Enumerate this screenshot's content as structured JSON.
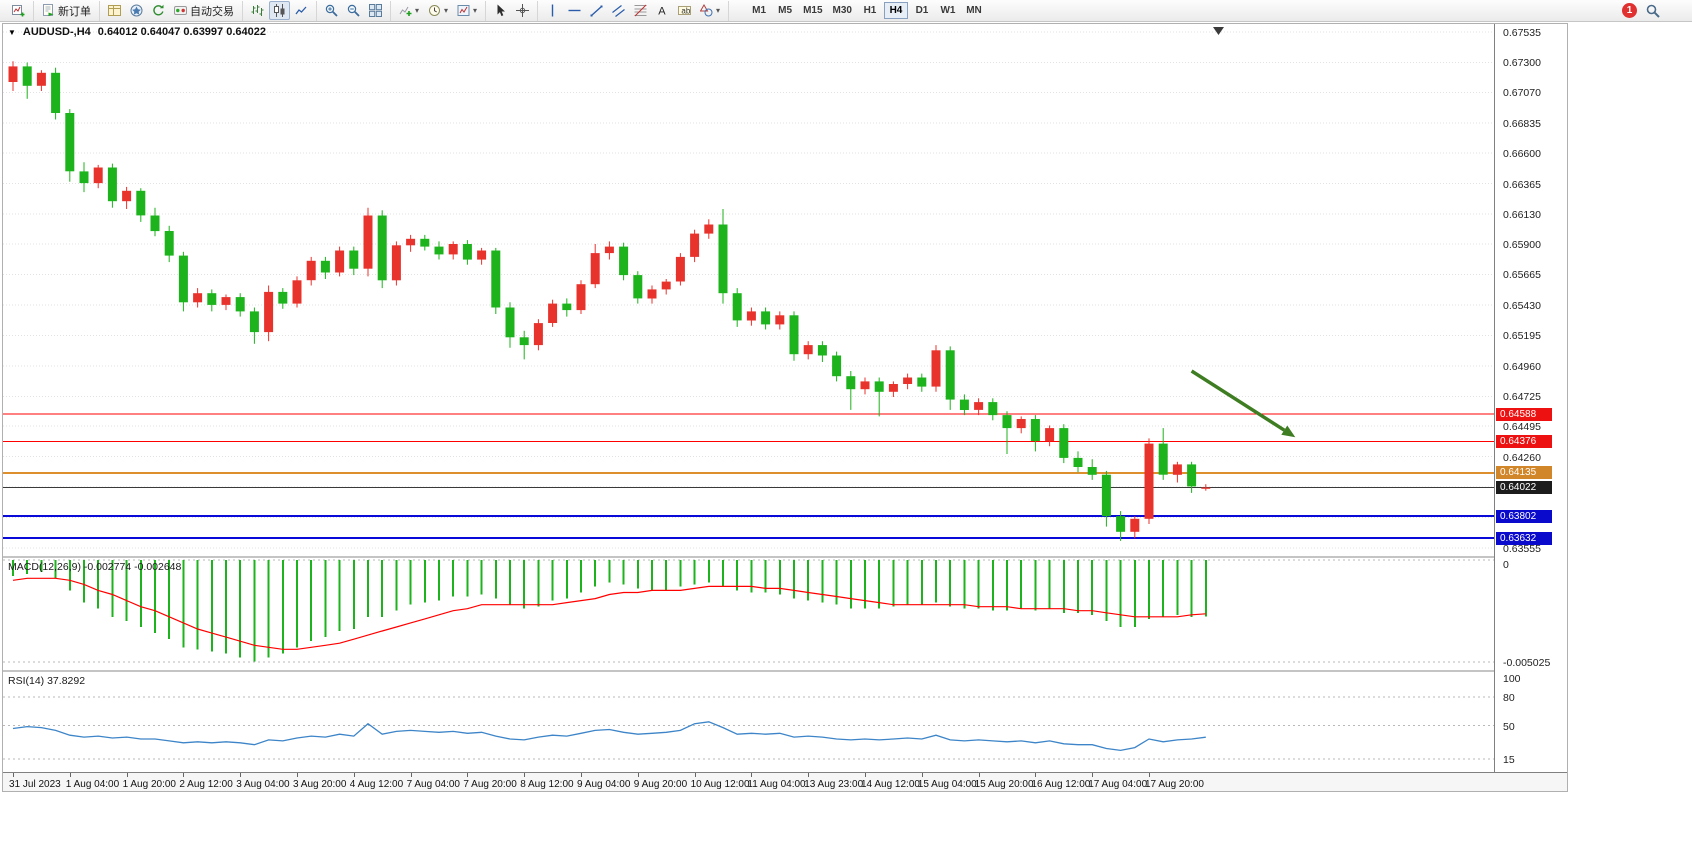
{
  "toolbar": {
    "groups": [
      {
        "items": [
          {
            "name": "new-chart",
            "icon": "chartplus"
          }
        ]
      },
      {
        "items": [
          {
            "name": "new-order",
            "icon": "order",
            "label": "新订单"
          }
        ]
      },
      {
        "items": [
          {
            "name": "market-watch",
            "icon": "market"
          },
          {
            "name": "navigator",
            "icon": "navigator"
          },
          {
            "name": "refresh",
            "icon": "refresh"
          },
          {
            "name": "auto-trading",
            "icon": "autotrade",
            "label": "自动交易"
          }
        ]
      },
      {
        "items": [
          {
            "name": "chart-bars",
            "icon": "bars"
          },
          {
            "name": "chart-candles",
            "icon": "candle",
            "pressed": true
          },
          {
            "name": "chart-line",
            "icon": "linechart"
          }
        ]
      },
      {
        "items": [
          {
            "name": "zoom-in",
            "icon": "zoomin"
          },
          {
            "name": "zoom-out",
            "icon": "zoomout"
          },
          {
            "name": "tile-windows",
            "icon": "tile"
          }
        ]
      },
      {
        "items": [
          {
            "name": "indicators-list",
            "icon": "indicators",
            "dropdown": true
          },
          {
            "name": "periods",
            "icon": "clock",
            "dropdown": true
          },
          {
            "name": "templates",
            "icon": "template",
            "dropdown": true
          }
        ]
      },
      {
        "items": [
          {
            "name": "cursor",
            "icon": "cursor"
          },
          {
            "name": "crosshair",
            "icon": "crosshair"
          }
        ]
      },
      {
        "items": [
          {
            "name": "vertical-line",
            "icon": "vline"
          },
          {
            "name": "horizontal-line",
            "icon": "hline"
          },
          {
            "name": "trendline",
            "icon": "trend"
          },
          {
            "name": "equidistant-channel",
            "icon": "channel"
          },
          {
            "name": "fibonacci-retracement",
            "icon": "fibo"
          },
          {
            "name": "text",
            "icon": "textA"
          },
          {
            "name": "text-label",
            "icon": "labelT"
          },
          {
            "name": "arrows",
            "icon": "shapes",
            "dropdown": true
          }
        ]
      }
    ],
    "timeframes": [
      {
        "label": "M1"
      },
      {
        "label": "M5"
      },
      {
        "label": "M15"
      },
      {
        "label": "M30"
      },
      {
        "label": "H1"
      },
      {
        "label": "H4",
        "pressed": true
      },
      {
        "label": "D1"
      },
      {
        "label": "W1"
      },
      {
        "label": "MN"
      }
    ],
    "badge": "1"
  },
  "chart": {
    "collapse_glyph": "▼",
    "symbol_period": "AUDUSD-,H4",
    "ohlc": "0.64012 0.64047 0.63997 0.64022"
  },
  "indicators": {
    "macd": "MACD(12,26,9) -0.002774 -0.002648",
    "rsi": "RSI(14) 37.8292"
  },
  "chart_data": {
    "type": "candlestick",
    "symbol": "AUDUSD-",
    "period": "H4",
    "up_color": "#e8332d",
    "down_color": "#1cb31c",
    "price_ticks": [
      "0.67535",
      "0.67300",
      "0.67070",
      "0.66835",
      "0.66600",
      "0.66365",
      "0.66130",
      "0.65900",
      "0.65665",
      "0.65430",
      "0.65195",
      "0.64960",
      "0.64725",
      "0.64495",
      "0.64260",
      "0.64025",
      "0.63790",
      "0.63555"
    ],
    "time_labels": [
      "31 Jul 2023",
      "1 Aug 04:00",
      "1 Aug 20:00",
      "2 Aug 12:00",
      "3 Aug 04:00",
      "3 Aug 20:00",
      "4 Aug 12:00",
      "7 Aug 04:00",
      "7 Aug 20:00",
      "8 Aug 12:00",
      "9 Aug 04:00",
      "9 Aug 20:00",
      "10 Aug 12:00",
      "11 Aug 04:00",
      "13 Aug 23:00",
      "14 Aug 12:00",
      "15 Aug 04:00",
      "15 Aug 20:00",
      "16 Aug 12:00",
      "17 Aug 04:00",
      "17 Aug 20:00"
    ],
    "bars_per_label": 4,
    "candles": [
      [
        0.6715,
        0.6731,
        0.6708,
        0.6727
      ],
      [
        0.6727,
        0.673,
        0.6702,
        0.6712
      ],
      [
        0.6712,
        0.6724,
        0.6708,
        0.6722
      ],
      [
        0.6722,
        0.6726,
        0.6686,
        0.6691
      ],
      [
        0.6691,
        0.6694,
        0.6638,
        0.6646
      ],
      [
        0.6646,
        0.6653,
        0.663,
        0.6637
      ],
      [
        0.6637,
        0.6651,
        0.6633,
        0.6649
      ],
      [
        0.6649,
        0.6652,
        0.6618,
        0.6623
      ],
      [
        0.6623,
        0.6634,
        0.6617,
        0.6631
      ],
      [
        0.6631,
        0.6633,
        0.6607,
        0.6612
      ],
      [
        0.6612,
        0.6618,
        0.6596,
        0.66
      ],
      [
        0.66,
        0.6604,
        0.6576,
        0.6581
      ],
      [
        0.6581,
        0.6584,
        0.6538,
        0.6545
      ],
      [
        0.6545,
        0.6556,
        0.6541,
        0.6552
      ],
      [
        0.6552,
        0.6555,
        0.6538,
        0.6543
      ],
      [
        0.6543,
        0.6551,
        0.6539,
        0.6549
      ],
      [
        0.6549,
        0.6552,
        0.6534,
        0.6538
      ],
      [
        0.6538,
        0.6541,
        0.6513,
        0.6522
      ],
      [
        0.6522,
        0.6558,
        0.6515,
        0.6553
      ],
      [
        0.6553,
        0.6556,
        0.654,
        0.6544
      ],
      [
        0.6544,
        0.6565,
        0.6541,
        0.6562
      ],
      [
        0.6562,
        0.658,
        0.6558,
        0.6577
      ],
      [
        0.6577,
        0.658,
        0.6563,
        0.6568
      ],
      [
        0.6568,
        0.6588,
        0.6565,
        0.6585
      ],
      [
        0.6585,
        0.6588,
        0.6566,
        0.6571
      ],
      [
        0.6571,
        0.6618,
        0.6565,
        0.6612
      ],
      [
        0.6612,
        0.6616,
        0.6556,
        0.6562
      ],
      [
        0.6562,
        0.6592,
        0.6558,
        0.6589
      ],
      [
        0.6589,
        0.6597,
        0.6584,
        0.6594
      ],
      [
        0.6594,
        0.6597,
        0.6585,
        0.6588
      ],
      [
        0.6588,
        0.6592,
        0.6578,
        0.6582
      ],
      [
        0.6582,
        0.6592,
        0.6578,
        0.659
      ],
      [
        0.659,
        0.6593,
        0.6574,
        0.6578
      ],
      [
        0.6578,
        0.6587,
        0.6574,
        0.6585
      ],
      [
        0.6585,
        0.6587,
        0.6536,
        0.6541
      ],
      [
        0.6541,
        0.6545,
        0.651,
        0.6518
      ],
      [
        0.6518,
        0.6523,
        0.6501,
        0.6512
      ],
      [
        0.6512,
        0.6532,
        0.6508,
        0.6529
      ],
      [
        0.6529,
        0.6547,
        0.6526,
        0.6544
      ],
      [
        0.6544,
        0.6548,
        0.6534,
        0.6539
      ],
      [
        0.6539,
        0.6562,
        0.6536,
        0.6559
      ],
      [
        0.6559,
        0.659,
        0.6556,
        0.6583
      ],
      [
        0.6583,
        0.6592,
        0.6578,
        0.6588
      ],
      [
        0.6588,
        0.6591,
        0.6562,
        0.6566
      ],
      [
        0.6566,
        0.6569,
        0.6544,
        0.6548
      ],
      [
        0.6548,
        0.6558,
        0.6544,
        0.6555
      ],
      [
        0.6555,
        0.6563,
        0.6551,
        0.6561
      ],
      [
        0.6561,
        0.6583,
        0.6558,
        0.658
      ],
      [
        0.658,
        0.6601,
        0.6576,
        0.6598
      ],
      [
        0.6598,
        0.6609,
        0.6594,
        0.6605
      ],
      [
        0.6605,
        0.6617,
        0.6544,
        0.6552
      ],
      [
        0.6552,
        0.6556,
        0.6526,
        0.6531
      ],
      [
        0.6531,
        0.6541,
        0.6527,
        0.6538
      ],
      [
        0.6538,
        0.6541,
        0.6524,
        0.6528
      ],
      [
        0.6528,
        0.6538,
        0.6524,
        0.6535
      ],
      [
        0.6535,
        0.6538,
        0.65,
        0.6505
      ],
      [
        0.6505,
        0.6515,
        0.6501,
        0.6512
      ],
      [
        0.6512,
        0.6515,
        0.6499,
        0.6504
      ],
      [
        0.6504,
        0.6507,
        0.6484,
        0.6488
      ],
      [
        0.6488,
        0.6492,
        0.6462,
        0.6478
      ],
      [
        0.6478,
        0.6487,
        0.6474,
        0.6484
      ],
      [
        0.6484,
        0.6487,
        0.6457,
        0.6476
      ],
      [
        0.6476,
        0.6484,
        0.6472,
        0.6482
      ],
      [
        0.6482,
        0.649,
        0.6478,
        0.6487
      ],
      [
        0.6487,
        0.649,
        0.6476,
        0.648
      ],
      [
        0.648,
        0.6512,
        0.6476,
        0.6508
      ],
      [
        0.6508,
        0.6511,
        0.6462,
        0.647
      ],
      [
        0.647,
        0.6474,
        0.6458,
        0.6462
      ],
      [
        0.6462,
        0.6471,
        0.6458,
        0.6468
      ],
      [
        0.6468,
        0.6471,
        0.6454,
        0.6458
      ],
      [
        0.6458,
        0.6461,
        0.6428,
        0.6448
      ],
      [
        0.6448,
        0.6457,
        0.6444,
        0.6455
      ],
      [
        0.6455,
        0.6458,
        0.643,
        0.6438
      ],
      [
        0.6438,
        0.645,
        0.6434,
        0.6448
      ],
      [
        0.6448,
        0.6451,
        0.6421,
        0.6425
      ],
      [
        0.6425,
        0.643,
        0.6414,
        0.6418
      ],
      [
        0.6418,
        0.6424,
        0.6408,
        0.6412
      ],
      [
        0.6412,
        0.6415,
        0.6372,
        0.638
      ],
      [
        0.638,
        0.6384,
        0.6361,
        0.6368
      ],
      [
        0.6368,
        0.638,
        0.6363,
        0.6378
      ],
      [
        0.6378,
        0.644,
        0.6374,
        0.6436
      ],
      [
        0.6436,
        0.6448,
        0.6408,
        0.6412
      ],
      [
        0.6412,
        0.6422,
        0.6406,
        0.642
      ],
      [
        0.642,
        0.6422,
        0.6398,
        0.6403
      ],
      [
        0.64012,
        0.64047,
        0.63997,
        0.64022
      ]
    ],
    "levels": [
      {
        "label": "0.64588",
        "price": 0.64588,
        "color": "#ff0000",
        "badge": "#ee1111",
        "width": 1
      },
      {
        "label": "0.64376",
        "price": 0.64376,
        "color": "#ff0000",
        "badge": "#ee1111",
        "width": 1
      },
      {
        "label": "0.64135",
        "price": 0.64135,
        "color": "#dd8f2d",
        "badge": "#d2862a",
        "width": 2
      },
      {
        "label": "0.64022",
        "price": 0.64022,
        "color": "#3a3a3a",
        "badge": "#1c1c1c",
        "width": 1
      },
      {
        "label": "0.63802",
        "price": 0.63802,
        "color": "#0a0ad8",
        "badge": "#0a0acd",
        "width": 2
      },
      {
        "label": "0.63632",
        "price": 0.63632,
        "color": "#0a0ad8",
        "badge": "#0a0acd",
        "width": 2
      }
    ],
    "annotations": [
      {
        "type": "arrow",
        "from_bar": 83,
        "from_price": 0.6492,
        "to_bar": 90.3,
        "to_price": 0.6441,
        "color": "#3f7d23"
      }
    ],
    "macd": {
      "title": "MACD(12,26,9)",
      "current": "-0.002774",
      "signal_current": "-0.002648",
      "hist_color": "#1cb31c",
      "signal_color": "#ff0000",
      "axis_ticks": [
        "0",
        "-0.005025"
      ],
      "values": [
        -0.0008,
        -0.0007,
        -0.0006,
        -0.0009,
        -0.0015,
        -0.0021,
        -0.0024,
        -0.0028,
        -0.003,
        -0.0033,
        -0.0036,
        -0.0039,
        -0.0043,
        -0.0044,
        -0.0045,
        -0.0046,
        -0.0048,
        -0.005,
        -0.0048,
        -0.0046,
        -0.0043,
        -0.004,
        -0.0038,
        -0.0035,
        -0.0034,
        -0.0028,
        -0.0028,
        -0.0025,
        -0.0022,
        -0.0021,
        -0.002,
        -0.0018,
        -0.0018,
        -0.0017,
        -0.0019,
        -0.0022,
        -0.0024,
        -0.0023,
        -0.002,
        -0.0019,
        -0.0016,
        -0.0013,
        -0.0011,
        -0.0012,
        -0.0014,
        -0.0015,
        -0.0015,
        -0.0013,
        -0.0012,
        -0.0011,
        -0.0013,
        -0.0015,
        -0.0016,
        -0.0016,
        -0.0017,
        -0.0019,
        -0.002,
        -0.0021,
        -0.0022,
        -0.0024,
        -0.0024,
        -0.0024,
        -0.0023,
        -0.0022,
        -0.0022,
        -0.0021,
        -0.0023,
        -0.0024,
        -0.0024,
        -0.0025,
        -0.0025,
        -0.0024,
        -0.0025,
        -0.0024,
        -0.0026,
        -0.0026,
        -0.0027,
        -0.003,
        -0.0033,
        -0.0033,
        -0.0029,
        -0.0028,
        -0.0027,
        -0.0028,
        -0.002774
      ],
      "signal": [
        -0.001,
        -0.0009,
        -0.0009,
        -0.0009,
        -0.001,
        -0.0012,
        -0.0015,
        -0.0017,
        -0.002,
        -0.0023,
        -0.0025,
        -0.0028,
        -0.0031,
        -0.0034,
        -0.0036,
        -0.0038,
        -0.004,
        -0.0042,
        -0.0043,
        -0.0044,
        -0.0044,
        -0.0043,
        -0.0042,
        -0.0041,
        -0.0039,
        -0.0037,
        -0.0035,
        -0.0033,
        -0.0031,
        -0.0029,
        -0.0027,
        -0.0025,
        -0.0024,
        -0.0022,
        -0.0022,
        -0.0022,
        -0.0022,
        -0.0022,
        -0.0022,
        -0.0021,
        -0.002,
        -0.0019,
        -0.0017,
        -0.0016,
        -0.0016,
        -0.0015,
        -0.0015,
        -0.0015,
        -0.0014,
        -0.0013,
        -0.0013,
        -0.0013,
        -0.0013,
        -0.0014,
        -0.0014,
        -0.0015,
        -0.0016,
        -0.0017,
        -0.0018,
        -0.0019,
        -0.002,
        -0.0021,
        -0.0022,
        -0.0022,
        -0.0022,
        -0.0022,
        -0.0022,
        -0.0022,
        -0.0023,
        -0.0023,
        -0.0023,
        -0.0024,
        -0.0024,
        -0.0024,
        -0.0024,
        -0.0025,
        -0.0025,
        -0.0026,
        -0.0027,
        -0.0028,
        -0.0028,
        -0.0028,
        -0.0028,
        -0.0027,
        -0.002648
      ]
    },
    "rsi": {
      "title": "RSI(14)",
      "current": "37.8292",
      "color": "#3d85c8",
      "axis_ticks": [
        "100",
        "80",
        "50",
        "15"
      ],
      "level_lines": [
        80,
        50,
        15
      ],
      "values": [
        47,
        49,
        48,
        45,
        40,
        38,
        39,
        37,
        38,
        36,
        36,
        34,
        32,
        33,
        32,
        33,
        32,
        30,
        35,
        34,
        37,
        39,
        38,
        41,
        39,
        52,
        41,
        44,
        45,
        44,
        43,
        44,
        42,
        43,
        39,
        36,
        35,
        38,
        40,
        39,
        42,
        45,
        46,
        43,
        41,
        42,
        43,
        45,
        52,
        54,
        48,
        41,
        42,
        41,
        42,
        38,
        39,
        38,
        36,
        35,
        36,
        35,
        36,
        37,
        36,
        40,
        35,
        34,
        35,
        34,
        33,
        34,
        32,
        34,
        31,
        30,
        30,
        26,
        24,
        27,
        36,
        33,
        35,
        36,
        37.8292
      ]
    }
  }
}
